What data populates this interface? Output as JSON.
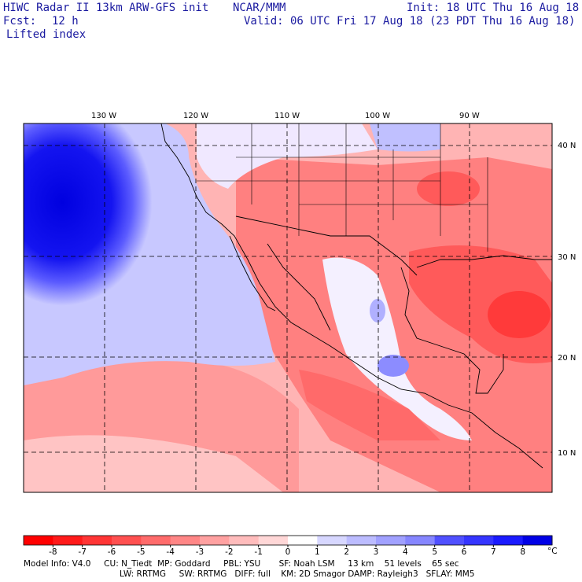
{
  "header": {
    "title_left": "HIWC Radar II 13km ARW-GFS init",
    "title_center": "NCAR/MMM",
    "init": "Init: 18 UTC Thu 16 Aug 18",
    "fcst_label": "Fcst:",
    "fcst_value": "12 h",
    "valid": "Valid: 06 UTC Fri 17 Aug 18 (23 PDT Thu 16 Aug 18)",
    "field": "Lifted index"
  },
  "map": {
    "lon_labels": [
      "130 W",
      "120 W",
      "110 W",
      "100 W",
      "90 W"
    ],
    "lat_labels": [
      "40 N",
      "30 N",
      "20 N",
      "10 N"
    ]
  },
  "colorbar": {
    "ticks": [
      "-8",
      "-7",
      "-6",
      "-5",
      "-4",
      "-3",
      "-2",
      "-1",
      "0",
      "1",
      "2",
      "3",
      "4",
      "5",
      "6",
      "7",
      "8"
    ],
    "unit": "°C",
    "colors": [
      "#ff0000",
      "#ff1a1a",
      "#ff3535",
      "#ff5050",
      "#ff6b6b",
      "#ff8686",
      "#ffa1a1",
      "#ffbcbc",
      "#ffd7d7",
      "#ffffff",
      "#d7d7ff",
      "#bcbcff",
      "#a1a1ff",
      "#8686ff",
      "#5050ff",
      "#3535ff",
      "#1a1aff",
      "#0000e6"
    ]
  },
  "footer": {
    "line1": "Model Info: V4.0     CU: N_Tiedt  MP: Goddard     PBL: YSU       SF: Noah LSM     13 km    51 levels    65 sec",
    "line2": "LW: RRTMG     SW: RRTMG   DIFF: full    KM: 2D Smagor DAMP: Rayleigh3   SFLAY: MM5"
  }
}
